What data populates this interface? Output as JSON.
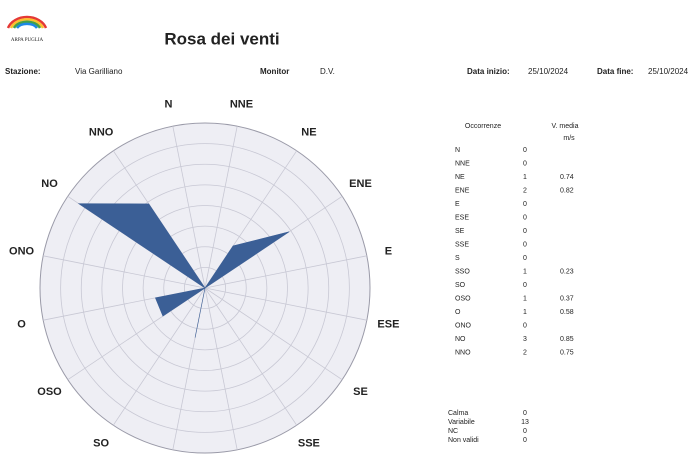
{
  "header": {
    "logo_text": "ARPA PUGLIA",
    "title": "Rosa dei venti",
    "station_label": "Stazione:",
    "station": "Via Garilliano",
    "monitor_label": "Monitor",
    "monitor": "D.V.",
    "start_label": "Data inizio:",
    "start": "25/10/2024",
    "end_label": "Data fine:",
    "end": "25/10/2024"
  },
  "chart_data": {
    "type": "polar-area",
    "color": "#3b5f96",
    "categories": [
      "N",
      "NNE",
      "NE",
      "ENE",
      "E",
      "ESE",
      "SE",
      "SSE",
      "S",
      "SSO",
      "SO",
      "OSO",
      "O",
      "ONO",
      "NO",
      "NNO"
    ],
    "values": [
      0,
      0,
      1,
      2,
      0,
      0,
      0,
      0,
      0,
      1,
      0,
      1,
      1,
      0,
      3,
      2
    ],
    "speeds": [
      null,
      null,
      0.74,
      0.82,
      null,
      null,
      null,
      null,
      null,
      0.23,
      null,
      0.37,
      0.58,
      null,
      0.85,
      0.75
    ]
  },
  "table": {
    "occurrences_header": "Occorrenze",
    "speed_header": "V. media",
    "speed_unit": "m/s"
  },
  "summary": [
    {
      "label": "Calma",
      "value": 0
    },
    {
      "label": "Variabile",
      "value": 13
    },
    {
      "label": "NC",
      "value": 0
    },
    {
      "label": "Non validi",
      "value": 0
    }
  ]
}
